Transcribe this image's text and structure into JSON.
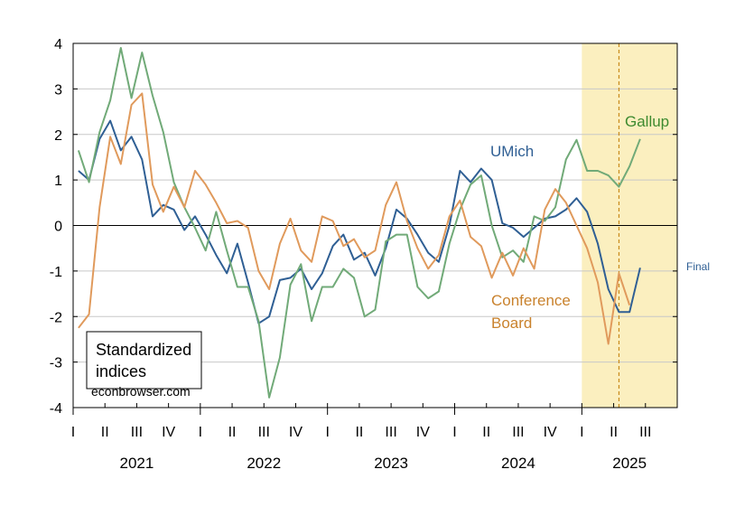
{
  "chart_data": {
    "type": "line",
    "title": "",
    "xlabel": "",
    "ylabel": "",
    "ylim": [
      -4,
      4
    ],
    "yticks": [
      "4",
      "3",
      "2",
      "1",
      "0",
      "-1",
      "-2",
      "-3",
      "-4"
    ],
    "quarter_labels": [
      "I",
      "II",
      "III",
      "IV",
      "I",
      "II",
      "III",
      "IV",
      "I",
      "II",
      "III",
      "IV",
      "I",
      "II",
      "III",
      "IV",
      "I",
      "II",
      "III"
    ],
    "year_labels": [
      "2021",
      "2022",
      "2023",
      "2024",
      "2025"
    ],
    "x_start": "2021-01",
    "x_end": "2025-09",
    "shaded_region": {
      "from": "2025-01",
      "to": "2025-09",
      "color": "#fbefbf"
    },
    "vertical_marker": {
      "at": "2025-04",
      "color": "#c98a1a",
      "style": "dashed"
    },
    "grid": true,
    "legend_box_text": [
      "Standardized",
      "indices"
    ],
    "source": "econbrowser.com",
    "series": [
      {
        "name": "UMich",
        "color": "#2f5f94",
        "end_note": "Final",
        "values": [
          1.2,
          1.0,
          1.9,
          2.3,
          1.65,
          1.95,
          1.45,
          0.2,
          0.45,
          0.35,
          -0.1,
          0.2,
          -0.2,
          -0.65,
          -1.05,
          -0.4,
          -1.25,
          -2.15,
          -2.0,
          -1.2,
          -1.15,
          -0.95,
          -1.4,
          -1.05,
          -0.45,
          -0.2,
          -0.75,
          -0.6,
          -1.1,
          -0.5,
          0.35,
          0.15,
          -0.2,
          -0.6,
          -0.8,
          0.0,
          1.2,
          0.95,
          1.25,
          1.0,
          0.05,
          -0.05,
          -0.25,
          -0.05,
          0.15,
          0.2,
          0.35,
          0.6,
          0.3,
          -0.4,
          -1.4,
          -1.9,
          -1.9,
          -0.93
        ]
      },
      {
        "name": "Gallup",
        "color": "#71aa78",
        "values": [
          1.65,
          0.95,
          2.05,
          2.75,
          3.9,
          2.8,
          3.8,
          2.85,
          2.05,
          0.95,
          0.4,
          -0.05,
          -0.55,
          0.3,
          -0.55,
          -1.35,
          -1.35,
          -2.1,
          -3.78,
          -2.9,
          -1.3,
          -0.85,
          -2.1,
          -1.35,
          -1.35,
          -0.95,
          -1.15,
          -2.0,
          -1.85,
          -0.35,
          -0.2,
          -0.2,
          -1.35,
          -1.6,
          -1.45,
          -0.4,
          0.35,
          0.9,
          1.1,
          0.0,
          -0.7,
          -0.55,
          -0.8,
          0.2,
          0.1,
          0.4,
          1.45,
          1.88,
          1.2,
          1.2,
          1.1,
          0.85,
          1.3,
          1.9
        ]
      },
      {
        "name": "Conference Board",
        "color": "#e09a5c",
        "values": [
          -2.25,
          -1.95,
          0.4,
          1.95,
          1.35,
          2.65,
          2.9,
          0.9,
          0.3,
          0.85,
          0.4,
          1.2,
          0.9,
          0.5,
          0.05,
          0.1,
          -0.05,
          -1.0,
          -1.4,
          -0.4,
          0.15,
          -0.55,
          -0.8,
          0.2,
          0.1,
          -0.45,
          -0.3,
          -0.7,
          -0.55,
          0.45,
          0.95,
          0.1,
          -0.5,
          -0.95,
          -0.65,
          0.2,
          0.55,
          -0.25,
          -0.45,
          -1.15,
          -0.6,
          -1.1,
          -0.5,
          -0.95,
          0.35,
          0.8,
          0.5,
          0.0,
          -0.5,
          -1.25,
          -2.6,
          -1.05,
          -1.75
        ]
      }
    ]
  },
  "labels": {
    "umich": "UMich",
    "gallup": "Gallup",
    "conference_board_line1": "Conference",
    "conference_board_line2": "Board",
    "final": "Final"
  }
}
